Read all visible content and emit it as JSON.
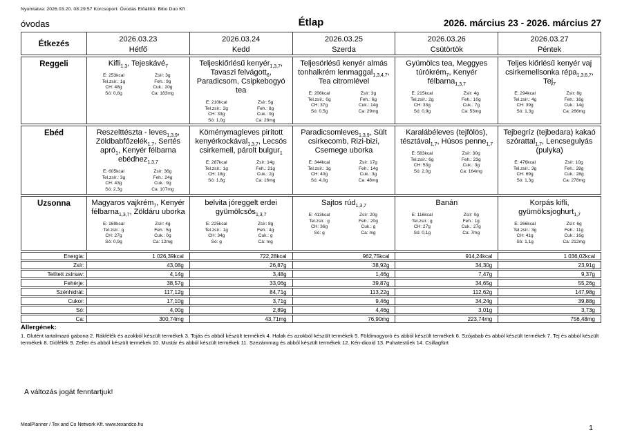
{
  "page": {
    "print_info": "Nyomtatva: 2026.03.20. 08:29:57 Korcsoport: Óvodás Előállító: Bibo Duo Kft",
    "group_name": "óvodas",
    "title": "Étlap",
    "date_range": "2026. március 23 - 2026. március 27",
    "change_notice": "A változás jogát fenntartjuk!",
    "footer": "MealPlanner / Tex and Co Network Kft. www.texandco.hu",
    "page_number": "1"
  },
  "table": {
    "corner_label": "Étkezés",
    "days": [
      {
        "date": "2026.03.23",
        "name": "Hétfő"
      },
      {
        "date": "2026.03.24",
        "name": "Kedd"
      },
      {
        "date": "2026.03.25",
        "name": "Szerda"
      },
      {
        "date": "2026.03.26",
        "name": "Csütörtök"
      },
      {
        "date": "2026.03.27",
        "name": "Péntek"
      }
    ],
    "meal_rows": [
      {
        "label": "Reggeli",
        "cells": [
          {
            "title": [
              "Kifli",
              {
                "sub": "1,3"
              },
              ", Tejeskávé",
              {
                "sub": "7"
              }
            ],
            "left": [
              "E: 253kcal",
              "Tel.zsír.: 1g",
              "CH: 48g",
              "Só: 0,8g"
            ],
            "right": [
              "Zsír: 3g",
              "Feh.: 9g",
              "Cuk.: 20g",
              "Ca: 183mg"
            ]
          },
          {
            "title": [
              "Teljeskiőrlésű kenyér",
              {
                "sub": "1,3,7"
              },
              ", Tavaszi felvágott",
              {
                "sub": "6"
              },
              ", Paradicsom, Csipkebogyó tea"
            ],
            "left": [
              "E: 210kcal",
              "Tel.zsír.: 2g",
              "CH: 33g",
              "Só: 1,0g"
            ],
            "right": [
              "Zsír: 5g",
              "Feh.: 8g",
              "Cuk.: 9g",
              "Ca: 28mg"
            ]
          },
          {
            "title": [
              "Teljesörlésű kenyér almás tonhalkrém lenmaggal",
              {
                "sub": "1,3,4,7"
              },
              ", Tea citromlével"
            ],
            "left": [
              "E: 206kcal",
              "Tel.zsír.: 0g",
              "CH: 37g",
              "Só: 0,5g"
            ],
            "right": [
              "Zsír: 3g",
              "Feh.: 6g",
              "Cuk.: 14g",
              "Ca: 29mg"
            ]
          },
          {
            "title": [
              "Gyümölcs tea, Meggyes túrókrém",
              {
                "sub": "7"
              },
              ", Kenyér félbarna",
              {
                "sub": "1,3,7"
              }
            ],
            "left": [
              "E: 215kcal",
              "Tel.zsír.: 2g",
              "CH: 33g",
              "Só: 0,9g"
            ],
            "right": [
              "Zsír: 4g",
              "Feh.: 10g",
              "Cuk.: 7g",
              "Ca: 53mg"
            ]
          },
          {
            "title": [
              "Teljes kiőrlésű kenyér vaj csirkemellsonka répa",
              {
                "sub": "1,3,6,7"
              },
              ", Tej",
              {
                "sub": "7"
              }
            ],
            "left": [
              "E: 294kcal",
              "Tel.zsír.: 4g",
              "CH: 39g",
              "Só: 1,3g"
            ],
            "right": [
              "Zsír: 8g",
              "Feh.: 16g",
              "Cuk.: 14g",
              "Ca: 266mg"
            ]
          }
        ]
      },
      {
        "label": "Ebéd",
        "cells": [
          {
            "title": [
              "Reszelttészta - leves",
              {
                "sub": "1,3,9"
              },
              ", Zöldbabfőzelék",
              {
                "sub": "1,7"
              },
              ", Sertés apró",
              {
                "sub": "1"
              },
              ", Kenyér félbarna ebédhez",
              {
                "sub": "1,3,7"
              }
            ],
            "left": [
              "E: 605kcal",
              "Tel.zsír.: 3g",
              "CH: 43g",
              "Só: 2,3g"
            ],
            "right": [
              "Zsír: 36g",
              "Feh.: 24g",
              "Cuk.: 9g",
              "Ca: 107mg"
            ]
          },
          {
            "title": [
              "Köménymagleves pirított kenyérkockával",
              {
                "sub": "1,3,7"
              },
              ", Lecsós csirkemell, párolt bulgur",
              {
                "sub": "1"
              }
            ],
            "left": [
              "E: 287kcal",
              "Tel.zsír.: 1g",
              "CH: 18g",
              "Só: 1,8g"
            ],
            "right": [
              "Zsír: 14g",
              "Feh.: 21g",
              "Cuk.: 2g",
              "Ca: 16mg"
            ]
          },
          {
            "title": [
              "Paradicsomleves",
              {
                "sub": "1,3,9"
              },
              ", Sült csirkecomb, Rizi-bizi, Csemege uborka"
            ],
            "left": [
              "E: 344kcal",
              "Tel.zsír.: 1g",
              "CH: 40g",
              "Só: 4,0g"
            ],
            "right": [
              "Zsír: 17g",
              "Feh.: 14g",
              "Cuk.: 3g",
              "Ca: 48mg"
            ]
          },
          {
            "title": [
              "Karalábéleves (tejfölös), tésztával",
              {
                "sub": "1,7"
              },
              ", Húsos penne",
              {
                "sub": "1,7"
              }
            ],
            "left": [
              "E: 583kcal",
              "Tel.zsír.: 6g",
              "CH: 53g",
              "Só: 2,0g"
            ],
            "right": [
              "Zsír: 30g",
              "Feh.: 23g",
              "Cuk.: 3g",
              "Ca: 164mg"
            ]
          },
          {
            "title": [
              "Tejbegríz (tejbedara) kakaó szórattal",
              {
                "sub": "1,7"
              },
              ", Lencsegulyás (pulyka)"
            ],
            "left": [
              "E: 476kcal",
              "Tel.zsír.: 3g",
              "CH: 69g",
              "Só: 1,3g"
            ],
            "right": [
              "Zsír: 10g",
              "Feh.: 28g",
              "Cuk.: 28g",
              "Ca: 278mg"
            ]
          }
        ]
      },
      {
        "label": "Uzsonna",
        "cells": [
          {
            "title": [
              "Magyaros vajkrém",
              {
                "sub": "7"
              },
              ", Kenyér félbarna",
              {
                "sub": "1,3,7"
              },
              ", Zöldáru uborka"
            ],
            "left": [
              "E: 169kcal",
              "Tel.zsír.: g",
              "CH: 27g",
              "Só: 0,9g"
            ],
            "right": [
              "Zsír: 4g",
              "Feh.: 5g",
              "Cuk.: 0g",
              "Ca: 12mg"
            ]
          },
          {
            "title": [
              "belvita jóreggelt erdei gyümölcsös",
              {
                "sub": "1,3,7"
              }
            ],
            "left": [
              "E: 225kcal",
              "Tel.zsír.: 1g",
              "CH: 34g",
              "Só: g"
            ],
            "right": [
              "Zsír: 8g",
              "Feh.: 4g",
              "Cuk.: g",
              "Ca: mg"
            ]
          },
          {
            "title": [
              "Sajtos rúd",
              {
                "sub": "1,3,7"
              }
            ],
            "left": [
              "E: 413kcal",
              "Tel.zsír.: g",
              "CH: 36g",
              "Só: g"
            ],
            "right": [
              "Zsír: 20g",
              "Feh.: 20g",
              "Cuk.: g",
              "Ca: mg"
            ]
          },
          {
            "title": [
              "Banán"
            ],
            "left": [
              "E: 116kcal",
              "Tel.zsír.: g",
              "CH: 27g",
              "Só: 0,1g"
            ],
            "right": [
              "Zsír: 0g",
              "Feh.: 1g",
              "Cuk.: 27g",
              "Ca: 7mg"
            ]
          },
          {
            "title": [
              "Korpás kifli, gyümölcsjoghurt",
              {
                "sub": "1,7"
              }
            ],
            "left": [
              "E: 266kcal",
              "Tel.zsír.: 3g",
              "CH: 41g",
              "Só: 1,1g"
            ],
            "right": [
              "Zsír: 6g",
              "Feh.: 11g",
              "Cuk.: 16g",
              "Ca: 212mg"
            ]
          }
        ]
      }
    ],
    "summary_rows": [
      {
        "label": "Energia:",
        "values": [
          "1 026,39kcal",
          "722,28kcal",
          "962,75kcal",
          "914,24kcal",
          "1 036,02kcal"
        ]
      },
      {
        "label": "Zsír:",
        "values": [
          "43,08g",
          "26,87g",
          "38,92g",
          "34,30g",
          "23,91g"
        ]
      },
      {
        "label": "Telített zsírsav:",
        "values": [
          "4,14g",
          "3,48g",
          "1,46g",
          "7,47g",
          "9,37g"
        ]
      },
      {
        "label": "Fehérje:",
        "values": [
          "38,57g",
          "33,06g",
          "39,87g",
          "34,65g",
          "55,26g"
        ]
      },
      {
        "label": "Szénhidrát:",
        "values": [
          "117,12g",
          "84,71g",
          "113,22g",
          "112,62g",
          "147,98g"
        ]
      },
      {
        "label": "Cukor:",
        "values": [
          "17,10g",
          "3,71g",
          "9,46g",
          "34,24g",
          "39,88g"
        ]
      },
      {
        "label": "Só:",
        "values": [
          "4,00g",
          "2,89g",
          "4,46g",
          "3,01g",
          "3,73g"
        ]
      },
      {
        "label": "Ca:",
        "values": [
          "300,74mg",
          "43,71mg",
          "76,90mg",
          "223,74mg",
          "756,48mg"
        ]
      }
    ]
  },
  "allergens": {
    "heading": "Allergének:",
    "text": "1. Glutént tartalmazó gabona 2. Rákfélék és azokból készült termékek 3. Tojás és abból készült termékek 4. Halak és azokból készült termékek 5. Földimogyoró és abból készült termékek 6. Szójabab és abból készült termékek 7. Tej és abból készült termékek 8. Diófélék 9. Zeller és abból készült termékek 10. Mustár és abból készült termékek 11. Szezámmag és abból készült termékek 12. Kén-dioxid 13. Puhatestűek 14. Csillagfürt"
  }
}
